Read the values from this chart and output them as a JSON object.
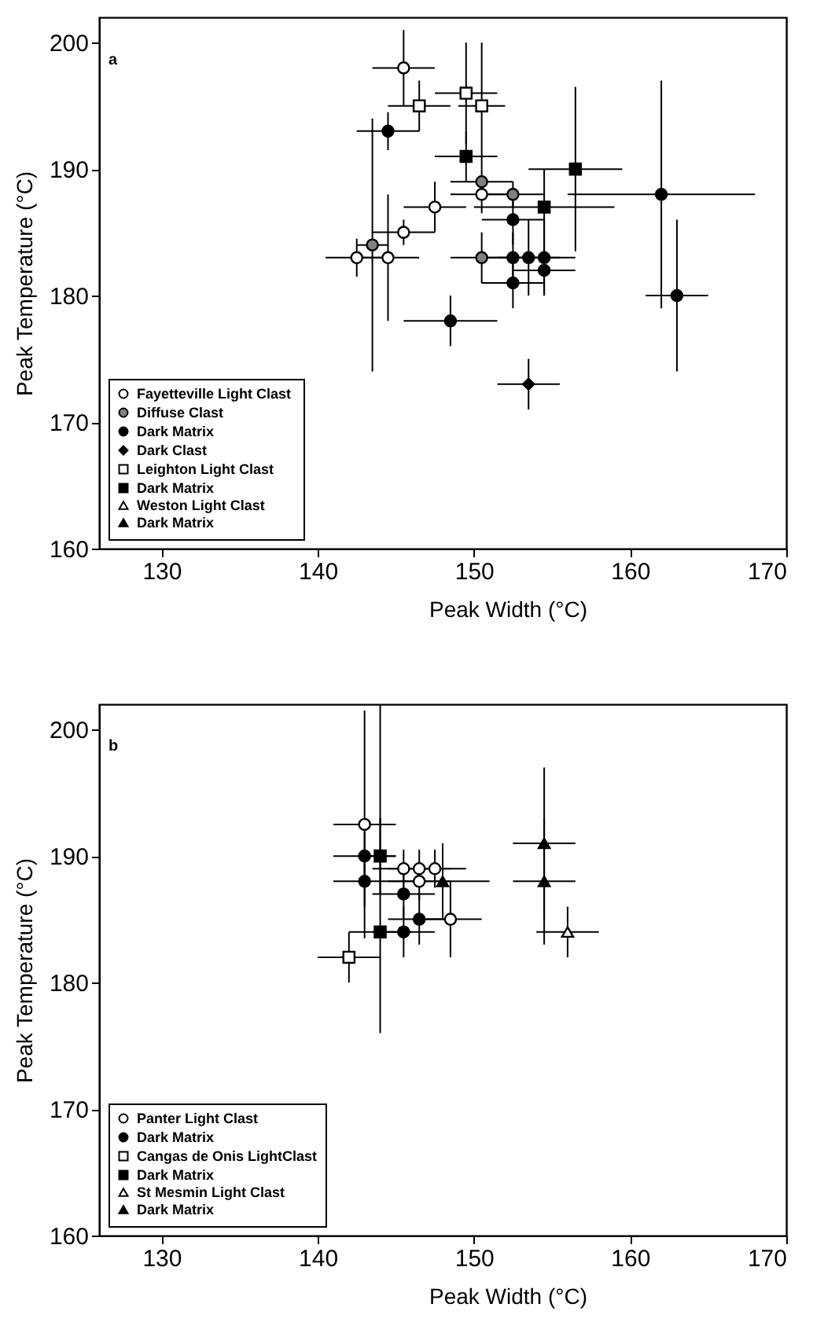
{
  "chart_data": [
    {
      "type": "scatter",
      "title": "a",
      "xlabel": "Peak Width (°C)",
      "ylabel": "Peak Temperature (°C)",
      "xlim": [
        126,
        170
      ],
      "ylim": [
        160,
        202
      ],
      "xticks": [
        130,
        140,
        150,
        160,
        170
      ],
      "yticks": [
        160,
        170,
        180,
        190,
        200
      ],
      "legend": "bottom left",
      "series": [
        {
          "name": "Fayetteville  Light Clast",
          "color": "#ffffff",
          "marker": "circle",
          "x": [
            145.5,
            150.5,
            147.5,
            145.5,
            142.5,
            144.5
          ],
          "values": [
            198,
            188,
            187,
            185,
            183,
            183
          ],
          "errors": [
            3,
            1.5,
            2,
            1,
            1.5,
            5
          ],
          "xerrors": [
            2,
            2,
            2,
            2,
            2,
            2
          ]
        },
        {
          "name": "Diffuse Clast",
          "color": "#808080",
          "marker": "circle",
          "x": [
            150.5,
            152.5,
            143.5,
            150.5
          ],
          "values": [
            189,
            188,
            184,
            183
          ],
          "errors": [
            1,
            1,
            10,
            2
          ],
          "xerrors": [
            2,
            2,
            1,
            2
          ]
        },
        {
          "name": "Dark Matrix",
          "color": "#000000",
          "marker": "circle",
          "x": [
            144.5,
            152.5,
            162,
            163,
            152.5,
            153.5,
            154.5,
            154.5,
            152.5,
            148.5
          ],
          "values": [
            193,
            186,
            188,
            180,
            183,
            183,
            183,
            182,
            181,
            178
          ],
          "errors": [
            1.5,
            2,
            9,
            6,
            2,
            3,
            3,
            2,
            2,
            2
          ],
          "xerrors": [
            2,
            2,
            6,
            2,
            2,
            2,
            2,
            2,
            2,
            3
          ]
        },
        {
          "name": "Dark Clast",
          "color": "#000000",
          "marker": "diamond",
          "x": [
            153.5
          ],
          "values": [
            173
          ],
          "errors": [
            2
          ],
          "xerrors": [
            2
          ]
        },
        {
          "name": "Leighton  Light Clast",
          "color": "#ffffff",
          "marker": "square",
          "x": [
            146.5,
            149.5,
            150.5
          ],
          "values": [
            195,
            196,
            195
          ],
          "errors": [
            2,
            4,
            5
          ],
          "xerrors": [
            2,
            2,
            1.5
          ]
        },
        {
          "name": "Dark Matrix",
          "color": "#000000",
          "marker": "square",
          "x": [
            149.5,
            154.5,
            156.5
          ],
          "values": [
            191,
            187,
            190
          ],
          "errors": [
            2,
            3,
            6.5
          ],
          "xerrors": [
            2,
            4.5,
            3
          ]
        },
        {
          "name": "Weston Light Clast",
          "color": "#ffffff",
          "marker": "triangle"
        },
        {
          "name": "Dark Matrix",
          "color": "#000000",
          "marker": "triangle"
        }
      ]
    },
    {
      "type": "scatter",
      "title": "b",
      "xlabel": "Peak Width (°C)",
      "ylabel": "Peak Temperature (°C)",
      "xlim": [
        126,
        170
      ],
      "ylim": [
        160,
        202
      ],
      "xticks": [
        130,
        140,
        150,
        160,
        170
      ],
      "yticks": [
        160,
        170,
        180,
        190,
        200
      ],
      "legend": "bottom left",
      "series": [
        {
          "name": "Panter  Light Clast",
          "color": "#ffffff",
          "marker": "circle",
          "x": [
            143,
            145.5,
            146.5,
            147.5,
            146.5,
            148.5
          ],
          "values": [
            192.5,
            189,
            189,
            189,
            188,
            185
          ],
          "errors": [
            9,
            1.5,
            1.5,
            1.5,
            1.5,
            3
          ],
          "xerrors": [
            2,
            2,
            2,
            2,
            2,
            2
          ]
        },
        {
          "name": "Dark Matrix",
          "color": "#000000",
          "marker": "circle",
          "x": [
            143,
            143,
            145.5,
            146.5,
            145.5
          ],
          "values": [
            190,
            188,
            187,
            185,
            184
          ],
          "errors": [
            2,
            2,
            2,
            2,
            2
          ],
          "xerrors": [
            2,
            2,
            2,
            2,
            2
          ]
        },
        {
          "name": "Cangas de Onis LightClast",
          "color": "#ffffff",
          "marker": "square",
          "x": [
            142
          ],
          "values": [
            182
          ],
          "errors": [
            2
          ],
          "xerrors": [
            2
          ]
        },
        {
          "name": "Dark Matrix",
          "color": "#000000",
          "marker": "square",
          "x": [
            144,
            144
          ],
          "values": [
            190,
            184
          ],
          "errors": [
            3,
            [
              176,
              202
            ]
          ],
          "xerrors": [
            1,
            2
          ]
        },
        {
          "name": "St Mesmin  Light Clast",
          "color": "#ffffff",
          "marker": "triangle",
          "x": [
            156
          ],
          "values": [
            184
          ],
          "errors": [
            2
          ],
          "xerrors": [
            2
          ]
        },
        {
          "name": "Dark Matrix",
          "color": "#000000",
          "marker": "triangle",
          "x": [
            154.5,
            154.5,
            148
          ],
          "values": [
            191,
            188,
            188
          ],
          "errors": [
            6,
            5,
            3
          ],
          "xerrors": [
            2,
            2,
            3
          ]
        }
      ]
    }
  ]
}
